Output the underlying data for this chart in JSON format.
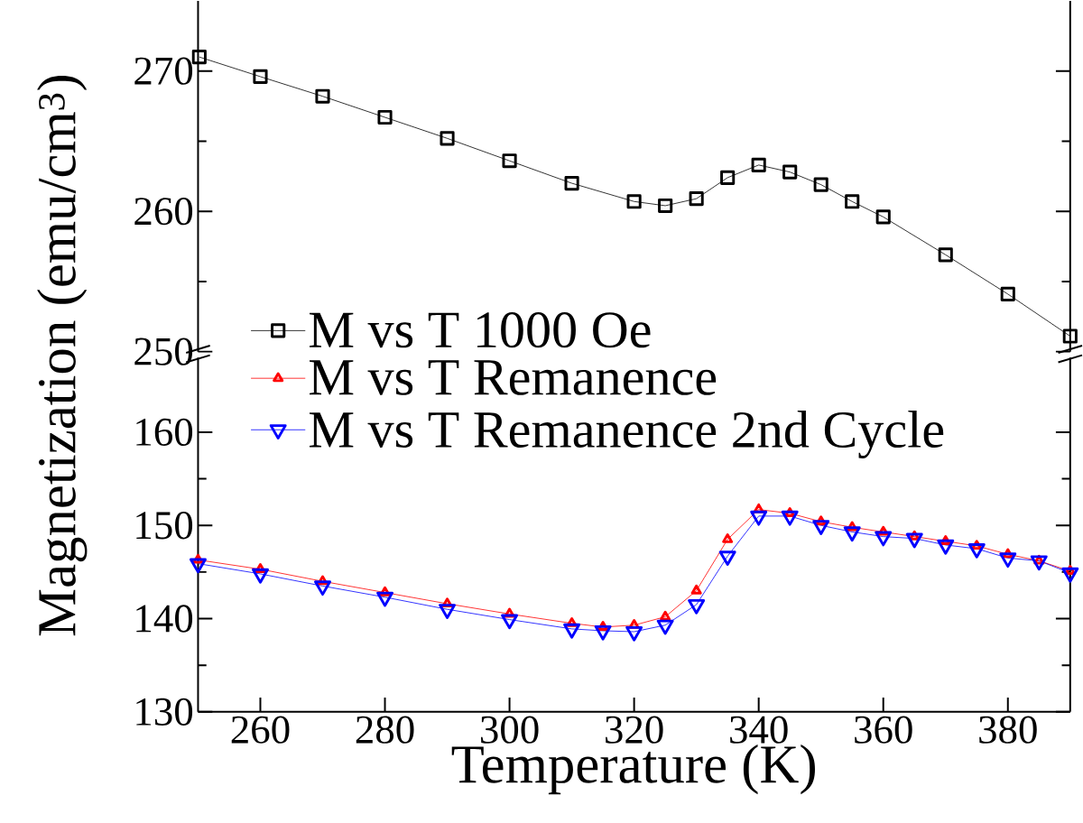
{
  "chart_data": [
    {
      "type": "line",
      "xlim": [
        250,
        390
      ],
      "ylim": [
        250,
        275
      ],
      "yticks": [
        250,
        260,
        270
      ],
      "tick_labels": "y",
      "ylabel": "Magnetization (emu/cm$^{3}$)",
      "legend": "bottom left",
      "series": [
        {
          "name": "M vs T 1000 Oe",
          "color": "#000000",
          "marker": "square",
          "x": [
            250.2,
            260,
            270,
            280,
            290,
            300,
            310,
            320,
            325,
            330,
            335,
            340,
            345,
            350,
            355,
            360,
            370,
            380,
            390
          ],
          "values": [
            271.0,
            269.6,
            268.2,
            266.7,
            265.2,
            263.6,
            262.0,
            260.7,
            260.4,
            260.9,
            262.4,
            263.3,
            262.8,
            261.9,
            260.7,
            259.6,
            256.9,
            254.1,
            251.1
          ]
        }
      ]
    },
    {
      "type": "line",
      "xlim": [
        250,
        390
      ],
      "xticks": [
        260,
        280,
        300,
        320,
        340,
        360,
        380
      ],
      "ylim": [
        130,
        168
      ],
      "yticks": [
        130,
        140,
        150,
        160
      ],
      "xlabel": "Temperature (K)",
      "legend": "top left",
      "series": [
        {
          "name": "M vs T Remanence",
          "color": "#ff0000",
          "marker": "triangle",
          "x": [
            250,
            260,
            270,
            280,
            290,
            300,
            310,
            315,
            320,
            325,
            330,
            335,
            340,
            345,
            350,
            355,
            360,
            365,
            370,
            375,
            380,
            385,
            390
          ],
          "values": [
            146.3,
            145.3,
            144.0,
            142.8,
            141.6,
            140.5,
            139.5,
            139.1,
            139.3,
            140.2,
            143.0,
            148.5,
            151.7,
            151.3,
            150.4,
            149.8,
            149.3,
            148.8,
            148.3,
            147.8,
            146.9,
            146.2,
            145.1
          ]
        },
        {
          "name": "M vs T Remanence 2nd Cycle",
          "color": "#0000ff",
          "marker": "triangle-down",
          "x": [
            250,
            260,
            270,
            280,
            290,
            300,
            310,
            315,
            320,
            325,
            330,
            335,
            340,
            345,
            350,
            355,
            360,
            365,
            370,
            375,
            380,
            385,
            390
          ],
          "values": [
            145.9,
            144.8,
            143.5,
            142.3,
            141.0,
            139.9,
            138.9,
            138.7,
            138.6,
            139.3,
            141.5,
            146.7,
            151.0,
            151.0,
            150.0,
            149.3,
            148.8,
            148.6,
            147.9,
            147.5,
            146.5,
            146.2,
            144.9
          ]
        }
      ]
    }
  ]
}
